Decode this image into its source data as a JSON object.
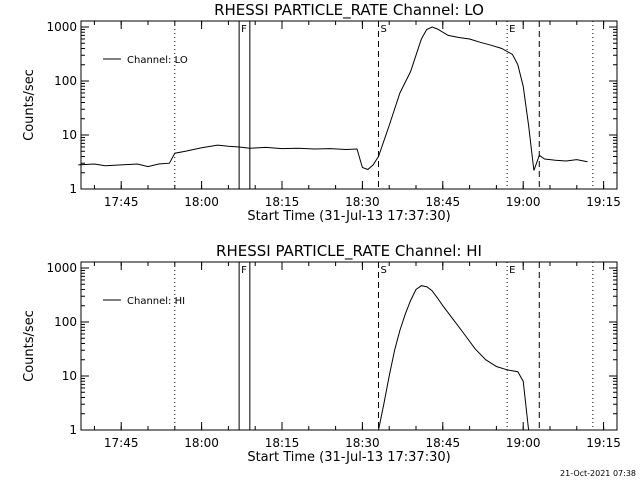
{
  "footer": {
    "timestamp": "21-Oct-2021 07:38"
  },
  "chart_data": [
    {
      "type": "line",
      "title": "RHESSI PARTICLE_RATE Channel: LO",
      "xlabel": "Start Time (31-Jul-13 17:37:30)",
      "ylabel": "Counts/sec",
      "yscale": "log",
      "ylim": [
        1,
        1000
      ],
      "xlim_minutes_from_start": [
        0,
        100
      ],
      "x_ticks": [
        "17:45",
        "18:00",
        "18:15",
        "18:30",
        "18:45",
        "19:00",
        "19:15"
      ],
      "y_ticks": [
        "1",
        "10",
        "100",
        "1000"
      ],
      "legend": {
        "label": "Channel: LO",
        "position": "top-left"
      },
      "annotations": [
        {
          "label": "F",
          "time": "18:07"
        },
        {
          "label": "S",
          "time": "18:33"
        },
        {
          "label": "E",
          "time": "18:57"
        }
      ],
      "vlines": [
        {
          "time": "17:55",
          "style": "dotted"
        },
        {
          "time": "18:07",
          "style": "solid"
        },
        {
          "time": "18:09",
          "style": "solid"
        },
        {
          "time": "18:33",
          "style": "dashed"
        },
        {
          "time": "18:57",
          "style": "dotted"
        },
        {
          "time": "19:03",
          "style": "dashed"
        },
        {
          "time": "19:13",
          "style": "dotted"
        }
      ],
      "series": [
        {
          "x": [
            "17:37",
            "17:40",
            "17:42",
            "17:45",
            "17:48",
            "17:50",
            "17:52",
            "17:54",
            "17:55",
            "17:57",
            "18:00",
            "18:03",
            "18:05",
            "18:07",
            "18:09",
            "18:12",
            "18:15",
            "18:18",
            "18:21",
            "18:24",
            "18:27",
            "18:29",
            "18:30",
            "18:31",
            "18:32",
            "18:33",
            "18:35",
            "18:37",
            "18:39",
            "18:40",
            "18:41",
            "18:42",
            "18:43",
            "18:44",
            "18:46",
            "18:48",
            "18:50",
            "18:52",
            "18:54",
            "18:56",
            "18:58",
            "18:59",
            "19:00",
            "19:01",
            "19:02",
            "19:03",
            "19:04",
            "19:06",
            "19:08",
            "19:10",
            "19:12"
          ],
          "values": [
            2.8,
            2.9,
            2.7,
            2.8,
            2.9,
            2.6,
            2.9,
            3.0,
            4.6,
            5.0,
            5.8,
            6.5,
            6.2,
            6.0,
            5.7,
            5.9,
            5.6,
            5.7,
            5.5,
            5.6,
            5.4,
            5.5,
            2.5,
            2.3,
            2.8,
            4.0,
            15,
            60,
            150,
            300,
            600,
            900,
            1000,
            920,
            700,
            640,
            600,
            520,
            460,
            400,
            310,
            200,
            80,
            15,
            2.2,
            4.2,
            3.6,
            3.4,
            3.3,
            3.5,
            3.2
          ]
        }
      ]
    },
    {
      "type": "line",
      "title": "RHESSI PARTICLE_RATE Channel: HI",
      "xlabel": "Start Time (31-Jul-13 17:37:30)",
      "ylabel": "Counts/sec",
      "yscale": "log",
      "ylim": [
        1,
        1000
      ],
      "xlim_minutes_from_start": [
        0,
        100
      ],
      "x_ticks": [
        "17:45",
        "18:00",
        "18:15",
        "18:30",
        "18:45",
        "19:00",
        "19:15"
      ],
      "y_ticks": [
        "1",
        "10",
        "100",
        "1000"
      ],
      "legend": {
        "label": "Channel: HI",
        "position": "top-left"
      },
      "annotations": [
        {
          "label": "F",
          "time": "18:07"
        },
        {
          "label": "S",
          "time": "18:33"
        },
        {
          "label": "E",
          "time": "18:57"
        }
      ],
      "vlines": [
        {
          "time": "17:55",
          "style": "dotted"
        },
        {
          "time": "18:07",
          "style": "solid"
        },
        {
          "time": "18:09",
          "style": "solid"
        },
        {
          "time": "18:33",
          "style": "dashed"
        },
        {
          "time": "18:57",
          "style": "dotted"
        },
        {
          "time": "19:03",
          "style": "dashed"
        },
        {
          "time": "19:13",
          "style": "dotted"
        }
      ],
      "series": [
        {
          "x": [
            "18:33",
            "18:34",
            "18:35",
            "18:36",
            "18:37",
            "18:38",
            "18:39",
            "18:40",
            "18:41",
            "18:42",
            "18:43",
            "18:44",
            "18:45",
            "18:47",
            "18:49",
            "18:51",
            "18:53",
            "18:55",
            "18:57",
            "18:59",
            "19:00",
            "19:01"
          ],
          "values": [
            1.0,
            3.0,
            10,
            30,
            70,
            140,
            250,
            400,
            470,
            450,
            380,
            280,
            200,
            110,
            60,
            32,
            20,
            15,
            13,
            12,
            8,
            1.0
          ]
        }
      ]
    }
  ]
}
